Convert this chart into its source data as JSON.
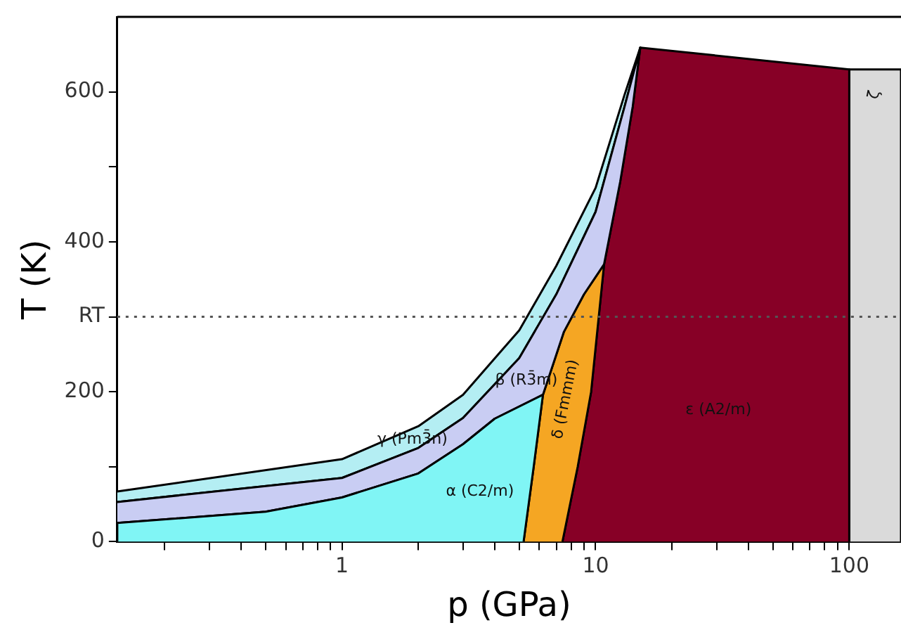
{
  "chart_data": {
    "type": "area",
    "xlabel": "p (GPa)",
    "ylabel": "T (K)",
    "log": "x",
    "xlim": [
      0.13,
      160
    ],
    "ylim": [
      0,
      700
    ],
    "xticks": [
      {
        "value": 0.2,
        "label": null
      },
      {
        "value": 0.3,
        "label": null
      },
      {
        "value": 0.4,
        "label": null
      },
      {
        "value": 0.5,
        "label": null
      },
      {
        "value": 0.6,
        "label": null
      },
      {
        "value": 0.7,
        "label": null
      },
      {
        "value": 0.8,
        "label": null
      },
      {
        "value": 0.9,
        "label": null
      },
      1,
      {
        "value": 2,
        "label": null
      },
      {
        "value": 3,
        "label": null
      },
      {
        "value": 4,
        "label": null
      },
      {
        "value": 5,
        "label": null
      },
      {
        "value": 6,
        "label": null
      },
      {
        "value": 7,
        "label": null
      },
      {
        "value": 8,
        "label": null
      },
      {
        "value": 9,
        "label": null
      },
      10,
      {
        "value": 20,
        "label": null
      },
      {
        "value": 30,
        "label": null
      },
      {
        "value": 40,
        "label": null
      },
      {
        "value": 50,
        "label": null
      },
      {
        "value": 60,
        "label": null
      },
      {
        "value": 70,
        "label": null
      },
      {
        "value": 80,
        "label": null
      },
      {
        "value": 90,
        "label": null
      },
      100
    ],
    "yticks": [
      0,
      {
        "value": 100,
        "label": null
      },
      200,
      {
        "value": 300,
        "label": "RT"
      },
      400,
      {
        "value": 500,
        "label": null
      },
      600
    ],
    "grid": false,
    "legend": false,
    "series": [
      {
        "name": "α (C2/m)",
        "color": "#80f5f5",
        "x": [
          0.13,
          0.13,
          0.5,
          1,
          2,
          3,
          4,
          6.2,
          5.7,
          5.2
        ],
        "values": [
          0,
          25,
          40,
          59,
          91,
          130,
          164,
          196,
          100,
          0
        ]
      },
      {
        "name": "β (R3̄m)",
        "color": "#c9cdf3",
        "x": [
          0.13,
          1,
          2,
          3,
          5,
          7,
          10,
          13,
          15,
          14,
          12.5,
          10.8,
          9,
          7.5,
          6.2,
          4,
          3,
          2,
          1,
          0.5,
          0.13
        ],
        "values": [
          53,
          85,
          125,
          165,
          245,
          330,
          440,
          580,
          659,
          580,
          480,
          370,
          330,
          280,
          196,
          164,
          130,
          91,
          59,
          40,
          25
        ]
      },
      {
        "name": "γ (Pm3̄n)",
        "color": "#b4eef3",
        "x": [
          0.13,
          1,
          2,
          3,
          5,
          7,
          10,
          13,
          15,
          13,
          10,
          7,
          5,
          3,
          2,
          1,
          0.13
        ],
        "values": [
          67,
          110,
          154,
          196,
          282,
          368,
          472,
          596,
          659,
          580,
          440,
          330,
          245,
          165,
          125,
          85,
          53
        ]
      },
      {
        "name": "δ (Fmmm)",
        "color": "#f5a623",
        "x": [
          5.2,
          5.7,
          6.2,
          7.5,
          9,
          10.8,
          9.6,
          8.5,
          7.4
        ],
        "values": [
          0,
          100,
          196,
          280,
          330,
          370,
          200,
          100,
          0
        ]
      },
      {
        "name": "ε (A2/m)",
        "color": "#870026",
        "x": [
          7.4,
          8.5,
          9.6,
          10.8,
          12.5,
          14,
          15,
          100,
          100
        ],
        "values": [
          0,
          100,
          200,
          370,
          480,
          580,
          659,
          630,
          0
        ]
      },
      {
        "name": "ζ",
        "color": "#dadada",
        "x": [
          100,
          100,
          160,
          160
        ],
        "values": [
          0,
          630,
          630,
          0
        ]
      }
    ],
    "ref_lines": [
      {
        "axis": "y",
        "value": 300,
        "color": "#555555",
        "line_style": "dotted"
      }
    ]
  }
}
